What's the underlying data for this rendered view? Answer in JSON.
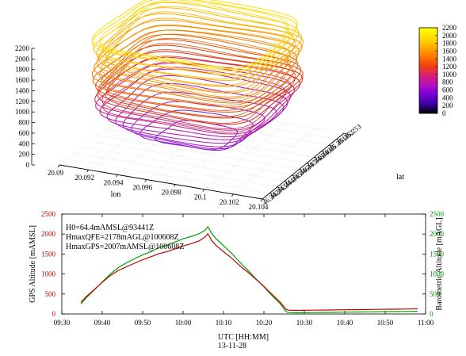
{
  "chart_data": [
    {
      "type": "line",
      "subtype": "3d-stacked-contours",
      "xlabel": "lon",
      "ylabel": "lat",
      "x_ticks": [
        "20.09",
        "20.092",
        "20.094",
        "20.096",
        "20.098",
        "20.1",
        "20.102",
        "20.104"
      ],
      "y_ticks": [
        "46.242",
        "46.243",
        "46.244",
        "46.245",
        "46.246",
        "46.247",
        "46.248",
        "46.249",
        "46.25",
        "46.251",
        "46.252",
        "46.253"
      ],
      "z_ticks": [
        "0",
        "200",
        "400",
        "600",
        "800",
        "1000",
        "1200",
        "1400",
        "1600",
        "1800",
        "2000",
        "2200"
      ],
      "xlim": [
        20.09,
        20.104
      ],
      "ylim": [
        46.242,
        46.253
      ],
      "zlim": [
        0,
        2200
      ],
      "colorbar": {
        "ticks": [
          "0",
          "200",
          "400",
          "600",
          "800",
          "1000",
          "1200",
          "1400",
          "1600",
          "1800",
          "2000",
          "2200"
        ],
        "range": [
          0,
          2200
        ],
        "palette": [
          "#000000",
          "#3a00a0",
          "#7a00d8",
          "#b410c0",
          "#d82070",
          "#f04010",
          "#ff7a00",
          "#ffb000",
          "#ffe000",
          "#ffff00"
        ]
      },
      "layers": [
        {
          "z": 250,
          "w": 0.4,
          "color": "#8a1ad0"
        },
        {
          "z": 350,
          "w": 0.55,
          "color": "#8f1ad0"
        },
        {
          "z": 450,
          "w": 0.65,
          "color": "#9a1ad0"
        },
        {
          "z": 550,
          "w": 0.75,
          "color": "#a018c8"
        },
        {
          "z": 650,
          "w": 0.82,
          "color": "#a818c0"
        },
        {
          "z": 750,
          "w": 0.88,
          "color": "#b010b4"
        },
        {
          "z": 850,
          "w": 0.93,
          "color": "#b810a6"
        },
        {
          "z": 950,
          "w": 0.97,
          "color": "#c41a84"
        },
        {
          "z": 1050,
          "w": 1.0,
          "color": "#cc2060"
        },
        {
          "z": 1150,
          "w": 1.0,
          "color": "#d83020"
        },
        {
          "z": 1250,
          "w": 1.0,
          "color": "#e04010"
        },
        {
          "z": 1350,
          "w": 1.0,
          "color": "#e85008"
        },
        {
          "z": 1450,
          "w": 1.0,
          "color": "#ef6400"
        },
        {
          "z": 1550,
          "w": 1.0,
          "color": "#f27a00"
        },
        {
          "z": 1650,
          "w": 1.0,
          "color": "#f58800"
        },
        {
          "z": 1750,
          "w": 1.0,
          "color": "#f89800"
        },
        {
          "z": 1850,
          "w": 1.0,
          "color": "#faa800"
        },
        {
          "z": 1950,
          "w": 1.0,
          "color": "#fbb800"
        },
        {
          "z": 2050,
          "w": 1.0,
          "color": "#fcc800"
        },
        {
          "z": 2150,
          "w": 1.0,
          "color": "#fdd800"
        },
        {
          "z": 2200,
          "w": 1.0,
          "color": "#fee200"
        }
      ]
    },
    {
      "type": "line",
      "xlabel": "UTC [HH:MM]",
      "date": "13-11-28",
      "ylabel": "GPS Altitude [mAMSL]",
      "y2label": "Barometric Altitude [mAGL]",
      "x_ticks": [
        "09:30",
        "09:40",
        "09:50",
        "10:00",
        "10:10",
        "10:20",
        "10:30",
        "10:40",
        "10:50",
        "11:00"
      ],
      "y_ticks": [
        "0",
        "500",
        "1000",
        "1500",
        "2000",
        "2500"
      ],
      "y2_ticks": [
        "0",
        "500",
        "1000",
        "1500",
        "2000",
        "2500"
      ],
      "xlim": [
        0,
        90
      ],
      "ylim": [
        0,
        2500
      ],
      "y2lim": [
        0,
        2500
      ],
      "annotations": [
        "H0=64.4mAMSL@93441Z",
        "HmaxQFE=2178mAGL@100608Z",
        "HmaxGPS=2007mAMSL@100608Z"
      ],
      "series": [
        {
          "axis": "y2",
          "color": "#00a000",
          "x": [
            4.7,
            6,
            8,
            10,
            12,
            14,
            16,
            18,
            20,
            22,
            24,
            26,
            28,
            30,
            32,
            34,
            35.5,
            36.1,
            36.5,
            37,
            38,
            40,
            42,
            44,
            46,
            48,
            50,
            52,
            54,
            55.5,
            56,
            58,
            62,
            66,
            70,
            74,
            78,
            82,
            86,
            88
          ],
          "values": [
            250,
            400,
            600,
            800,
            1000,
            1160,
            1280,
            1380,
            1480,
            1560,
            1660,
            1720,
            1800,
            1880,
            1940,
            2010,
            2100,
            2178,
            2130,
            2020,
            1900,
            1710,
            1520,
            1300,
            1100,
            880,
            680,
            460,
            260,
            60,
            35,
            30,
            35,
            40,
            45,
            50,
            55,
            60,
            65,
            70
          ]
        },
        {
          "axis": "y",
          "color": "#c00000",
          "x": [
            4.7,
            6,
            8,
            10,
            12,
            14,
            16,
            18,
            20,
            22,
            24,
            26,
            28,
            30,
            32,
            34,
            35.5,
            36.1,
            36.5,
            37,
            38,
            40,
            42,
            44,
            46,
            48,
            50,
            52,
            54,
            55.5,
            56,
            58,
            62,
            66,
            70,
            74,
            78,
            82,
            86,
            88
          ],
          "values": [
            290,
            430,
            610,
            790,
            960,
            1090,
            1180,
            1270,
            1360,
            1430,
            1510,
            1560,
            1630,
            1700,
            1760,
            1830,
            1930,
            2007,
            1950,
            1850,
            1730,
            1560,
            1400,
            1210,
            1050,
            870,
            690,
            490,
            300,
            115,
            95,
            90,
            95,
            100,
            105,
            110,
            115,
            120,
            125,
            130
          ]
        }
      ]
    }
  ]
}
